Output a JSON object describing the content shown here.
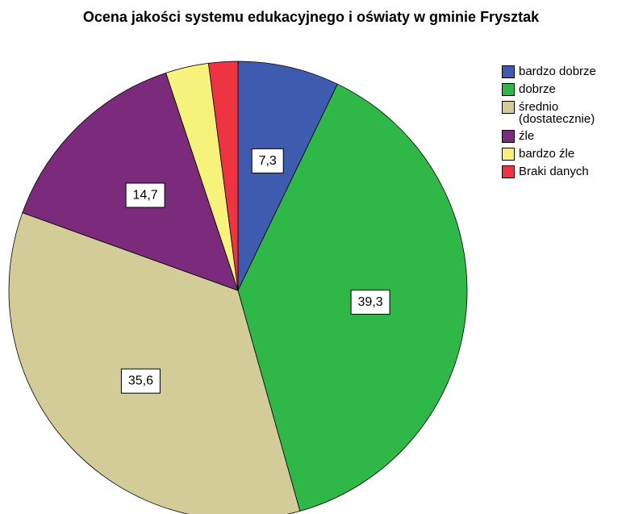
{
  "chart_data": {
    "type": "pie",
    "title": "Ocena jakości systemu edukacyjnego i oświaty w gminie Frysztak",
    "legend_position": "right",
    "start_angle_deg": 0,
    "direction": "clockwise",
    "slices": [
      {
        "label": "bardzo dobrze",
        "value": 7.3,
        "color": "#3e5bb0",
        "data_label": "7,3"
      },
      {
        "label": "dobrze",
        "value": 39.3,
        "color": "#2fb848",
        "data_label": "39,3"
      },
      {
        "label": "średnio\n(dostatecznie)",
        "value": 35.6,
        "color": "#d4cc98",
        "data_label": "35,6"
      },
      {
        "label": "źle",
        "value": 14.7,
        "color": "#7b2a7c",
        "data_label": "14,7"
      },
      {
        "label": "bardzo źle",
        "value": 3.1,
        "color": "#f7f37a",
        "data_label": ""
      },
      {
        "label": "Braki danych",
        "value": 2.1,
        "color": "#ef3340",
        "data_label": ""
      }
    ]
  }
}
